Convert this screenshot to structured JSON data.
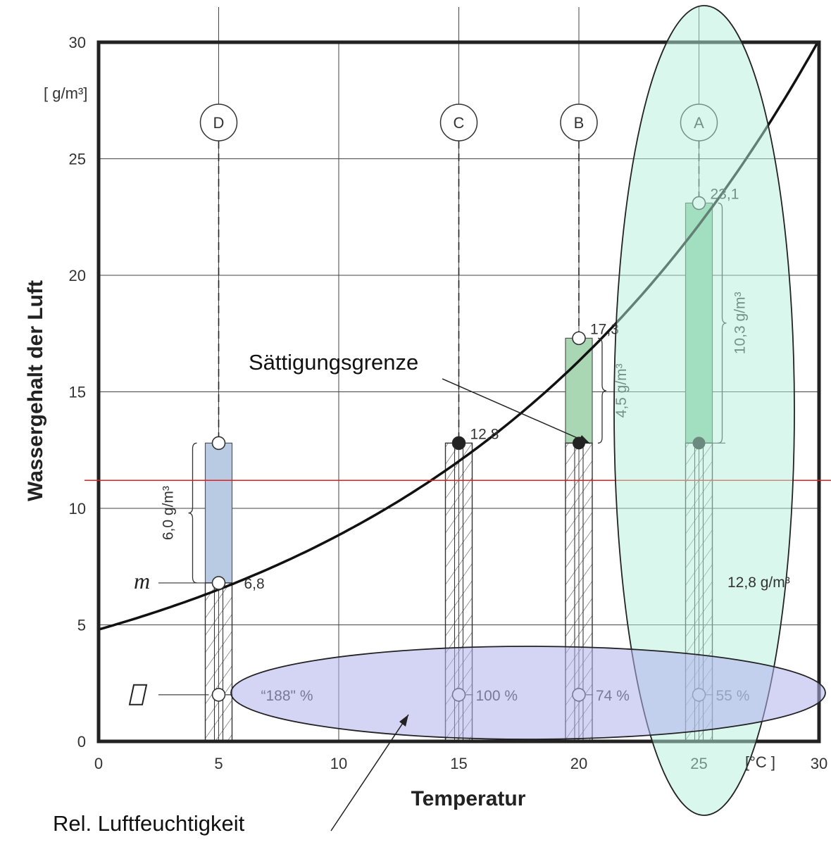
{
  "chart_data": {
    "type": "line",
    "xlabel": "Temperatur",
    "ylabel": "Wassergehalt der Luft",
    "x_unit": "[°C ]",
    "y_unit": "[ g/m³]",
    "xlim": [
      0,
      30
    ],
    "ylim": [
      0,
      30
    ],
    "x_ticks": [
      "0",
      "5",
      "10",
      "15",
      "20",
      "25",
      "30"
    ],
    "y_ticks": [
      "0",
      "5",
      "10",
      "15",
      "20",
      "25",
      "30"
    ],
    "grid": true,
    "saturation_curve": {
      "x": [
        0,
        5,
        10,
        15,
        20,
        25,
        30
      ],
      "y": [
        4.8,
        6.8,
        9.4,
        12.8,
        17.3,
        23.1,
        30.3
      ]
    },
    "columns": [
      {
        "letter": "D",
        "x": 5,
        "saturation": 12.8,
        "saturation_label": "",
        "dew_label": "6,8",
        "rh_label": "“188\" %",
        "diff_label": "6,0 g/m³",
        "bar_from": 6.8,
        "bar_to": 12.8,
        "bar_color": "#b9cbe2"
      },
      {
        "letter": "C",
        "x": 15,
        "saturation": 12.8,
        "saturation_label": "12,8",
        "dew_label": "",
        "rh_label": "100 %",
        "diff_label": "",
        "bar_from": 0,
        "bar_to": 0,
        "bar_color": ""
      },
      {
        "letter": "B",
        "x": 20,
        "saturation": 17.3,
        "saturation_label": "17,3",
        "dew_label": "",
        "rh_label": "74 %",
        "diff_label": "4,5 g/m³",
        "bar_from": 12.8,
        "bar_to": 17.3,
        "bar_color": "#a9d6b3"
      },
      {
        "letter": "A",
        "x": 25,
        "saturation": 23.1,
        "saturation_label": "23,1",
        "dew_label": "",
        "rh_label": "55 %",
        "diff_label": "10,3 g/m³",
        "bar_from": 12.8,
        "bar_to": 23.1,
        "bar_color": "#8fcfa6"
      }
    ],
    "water_content": 12.8,
    "water_content_label": "12,8 g/m³",
    "m_label": "m",
    "m_level": 6.8,
    "phi_level": 2,
    "red_line_y": 11.2,
    "annotations": {
      "saturation": "Sättigungsgrenze",
      "humidity": "Rel. Luftfeuchtigkeit"
    },
    "colors": {
      "curve": "#111111",
      "red_line": "#e02020",
      "highlight_green": "#b6f0dc",
      "highlight_blue": "#b0b0ec"
    }
  }
}
